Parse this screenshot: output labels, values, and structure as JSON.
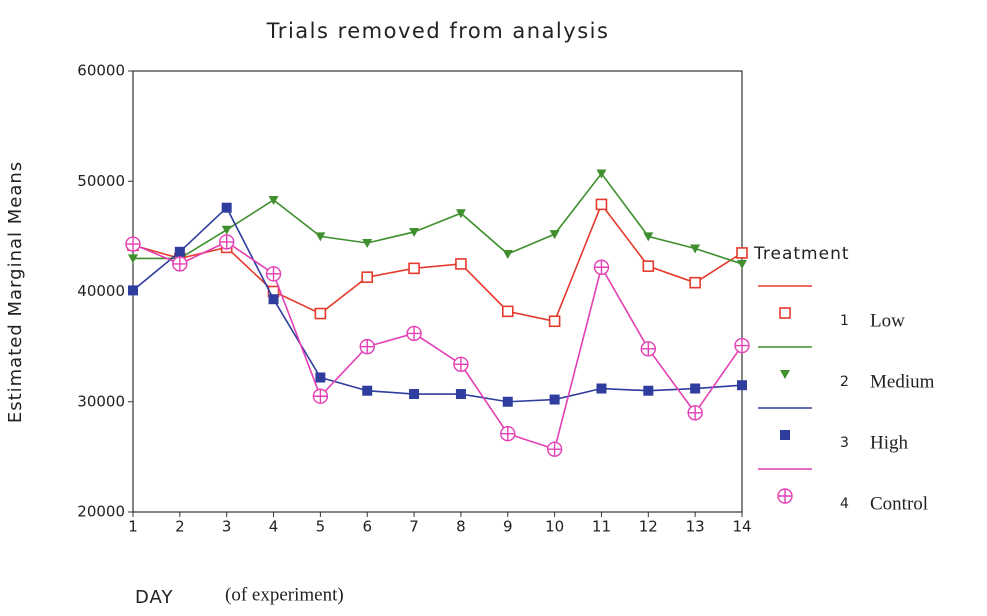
{
  "chart_data": {
    "type": "line",
    "title": "Trials removed from analysis",
    "y_label": "Estimated Marginal Means",
    "x_label": "DAY",
    "x_label_note": "(of experiment)",
    "legend_title": "Treatment",
    "x": [
      1,
      2,
      3,
      4,
      5,
      6,
      7,
      8,
      9,
      10,
      11,
      12,
      13,
      14
    ],
    "xlim": [
      1,
      14
    ],
    "xticks": [
      1,
      2,
      3,
      4,
      5,
      6,
      7,
      8,
      9,
      10,
      11,
      12,
      13,
      14
    ],
    "ylim": [
      20000,
      60000
    ],
    "yticks": [
      20000,
      30000,
      40000,
      50000,
      60000
    ],
    "series": [
      {
        "code": "1",
        "name": "Low",
        "color": "#e53a2c",
        "marker": "square-open",
        "values": [
          44200,
          43000,
          44000,
          40000,
          38000,
          41300,
          42100,
          42500,
          38200,
          37300,
          47900,
          42300,
          40800,
          43500
        ]
      },
      {
        "code": "2",
        "name": "Medium",
        "color": "#3f8f2f",
        "marker": "triangle-down",
        "values": [
          43000,
          43000,
          45600,
          48300,
          45000,
          44400,
          45400,
          47100,
          43400,
          45200,
          50700,
          45000,
          43900,
          42500
        ]
      },
      {
        "code": "3",
        "name": "High",
        "color": "#2e3d9e",
        "marker": "square-filled",
        "values": [
          40100,
          43600,
          47600,
          39300,
          32200,
          31000,
          30700,
          30700,
          30000,
          30200,
          31200,
          31000,
          31200,
          31500
        ]
      },
      {
        "code": "4",
        "name": "Control",
        "color": "#e43fb5",
        "marker": "circle-plus",
        "values": [
          44300,
          42500,
          44500,
          41600,
          30500,
          35000,
          36200,
          33400,
          27100,
          25700,
          42200,
          34800,
          29000,
          35100
        ]
      }
    ]
  }
}
